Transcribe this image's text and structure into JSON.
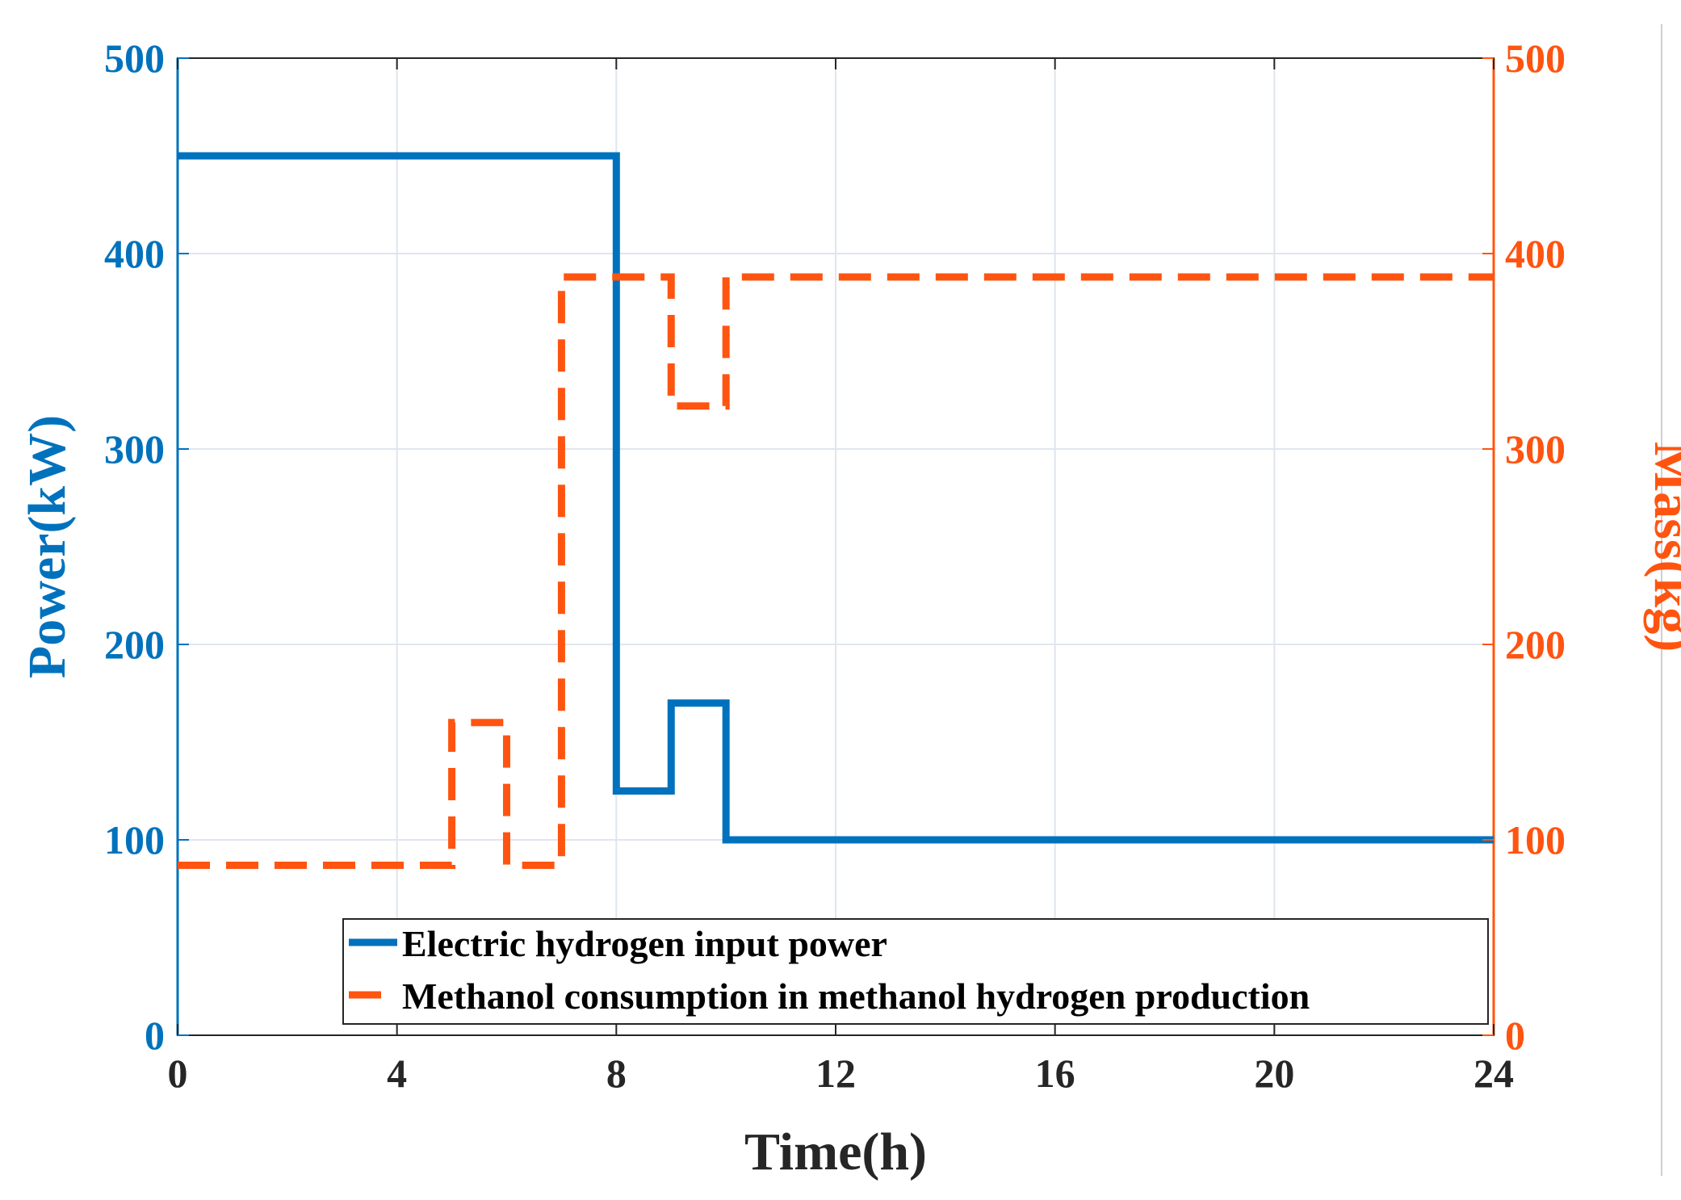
{
  "chart_data": {
    "type": "line",
    "title": "",
    "xlabel": "Time(h)",
    "ylabel_left": "Power(kW)",
    "ylabel_right": "Mass(kg)",
    "xlim": [
      0,
      24
    ],
    "ylim_left": [
      0,
      500
    ],
    "ylim_right": [
      0,
      500
    ],
    "x_ticks": [
      "0",
      "4",
      "8",
      "12",
      "16",
      "20",
      "24"
    ],
    "y_left_ticks": [
      "0",
      "100",
      "200",
      "300",
      "400",
      "500"
    ],
    "y_right_ticks": [
      "0",
      "100",
      "200",
      "300",
      "400",
      "500"
    ],
    "grid": true,
    "legend_position": "bottom-right",
    "colors": {
      "power": "#0072BD",
      "methanol": "#FF5410"
    },
    "series": [
      {
        "name": "Electric hydrogen input power",
        "axis": "left",
        "style": "solid",
        "step": true,
        "x": [
          0,
          8,
          8,
          9,
          9,
          10,
          10,
          24
        ],
        "y": [
          450,
          450,
          125,
          125,
          170,
          170,
          100,
          100
        ]
      },
      {
        "name": "Methanol consumption in methanol hydrogen production",
        "axis": "right",
        "style": "dashed",
        "step": true,
        "x": [
          0,
          5,
          5,
          6,
          6,
          7,
          7,
          9,
          9,
          10,
          10,
          24
        ],
        "y": [
          87,
          87,
          160,
          160,
          87,
          87,
          388,
          388,
          322,
          322,
          388,
          388
        ]
      }
    ]
  }
}
